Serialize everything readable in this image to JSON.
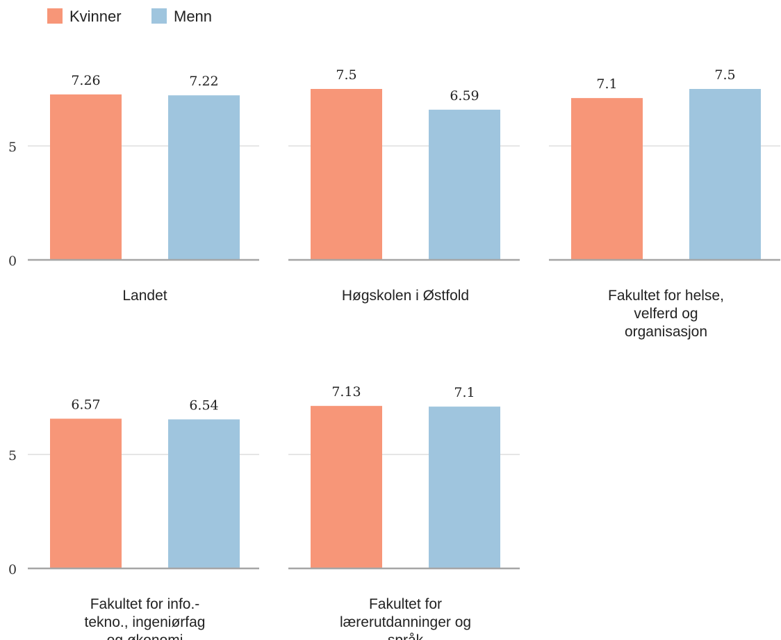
{
  "colors": {
    "kvinner": "#f79678",
    "menn": "#9fc5de",
    "gridline": "#e6e6e6",
    "baseline": "#a6a6a6"
  },
  "chart_data": {
    "type": "bar",
    "legend": {
      "position": "top-left",
      "entries": [
        "Kvinner",
        "Menn"
      ]
    },
    "series": [
      {
        "name": "Kvinner"
      },
      {
        "name": "Menn"
      }
    ],
    "ylim": [
      0,
      8
    ],
    "yticks": [
      "0",
      "5"
    ],
    "grid": true,
    "facets": [
      {
        "label": [
          "Landet"
        ],
        "values": [
          7.26,
          7.22
        ],
        "value_labels": [
          "7.26",
          "7.22"
        ]
      },
      {
        "label": [
          "Høgskolen i Østfold"
        ],
        "values": [
          7.5,
          6.59
        ],
        "value_labels": [
          "7.5",
          "6.59"
        ]
      },
      {
        "label": [
          "Fakultet for helse,",
          "velferd og",
          "organisasjon"
        ],
        "values": [
          7.1,
          7.5
        ],
        "value_labels": [
          "7.1",
          "7.5"
        ]
      },
      {
        "label": [
          "Fakultet for info.-",
          "tekno., ingeniørfag",
          "og økonomi"
        ],
        "values": [
          6.57,
          6.54
        ],
        "value_labels": [
          "6.57",
          "6.54"
        ]
      },
      {
        "label": [
          "Fakultet for",
          "lærerutdanninger og",
          "språk"
        ],
        "values": [
          7.13,
          7.1
        ],
        "value_labels": [
          "7.13",
          "7.1"
        ]
      }
    ]
  }
}
